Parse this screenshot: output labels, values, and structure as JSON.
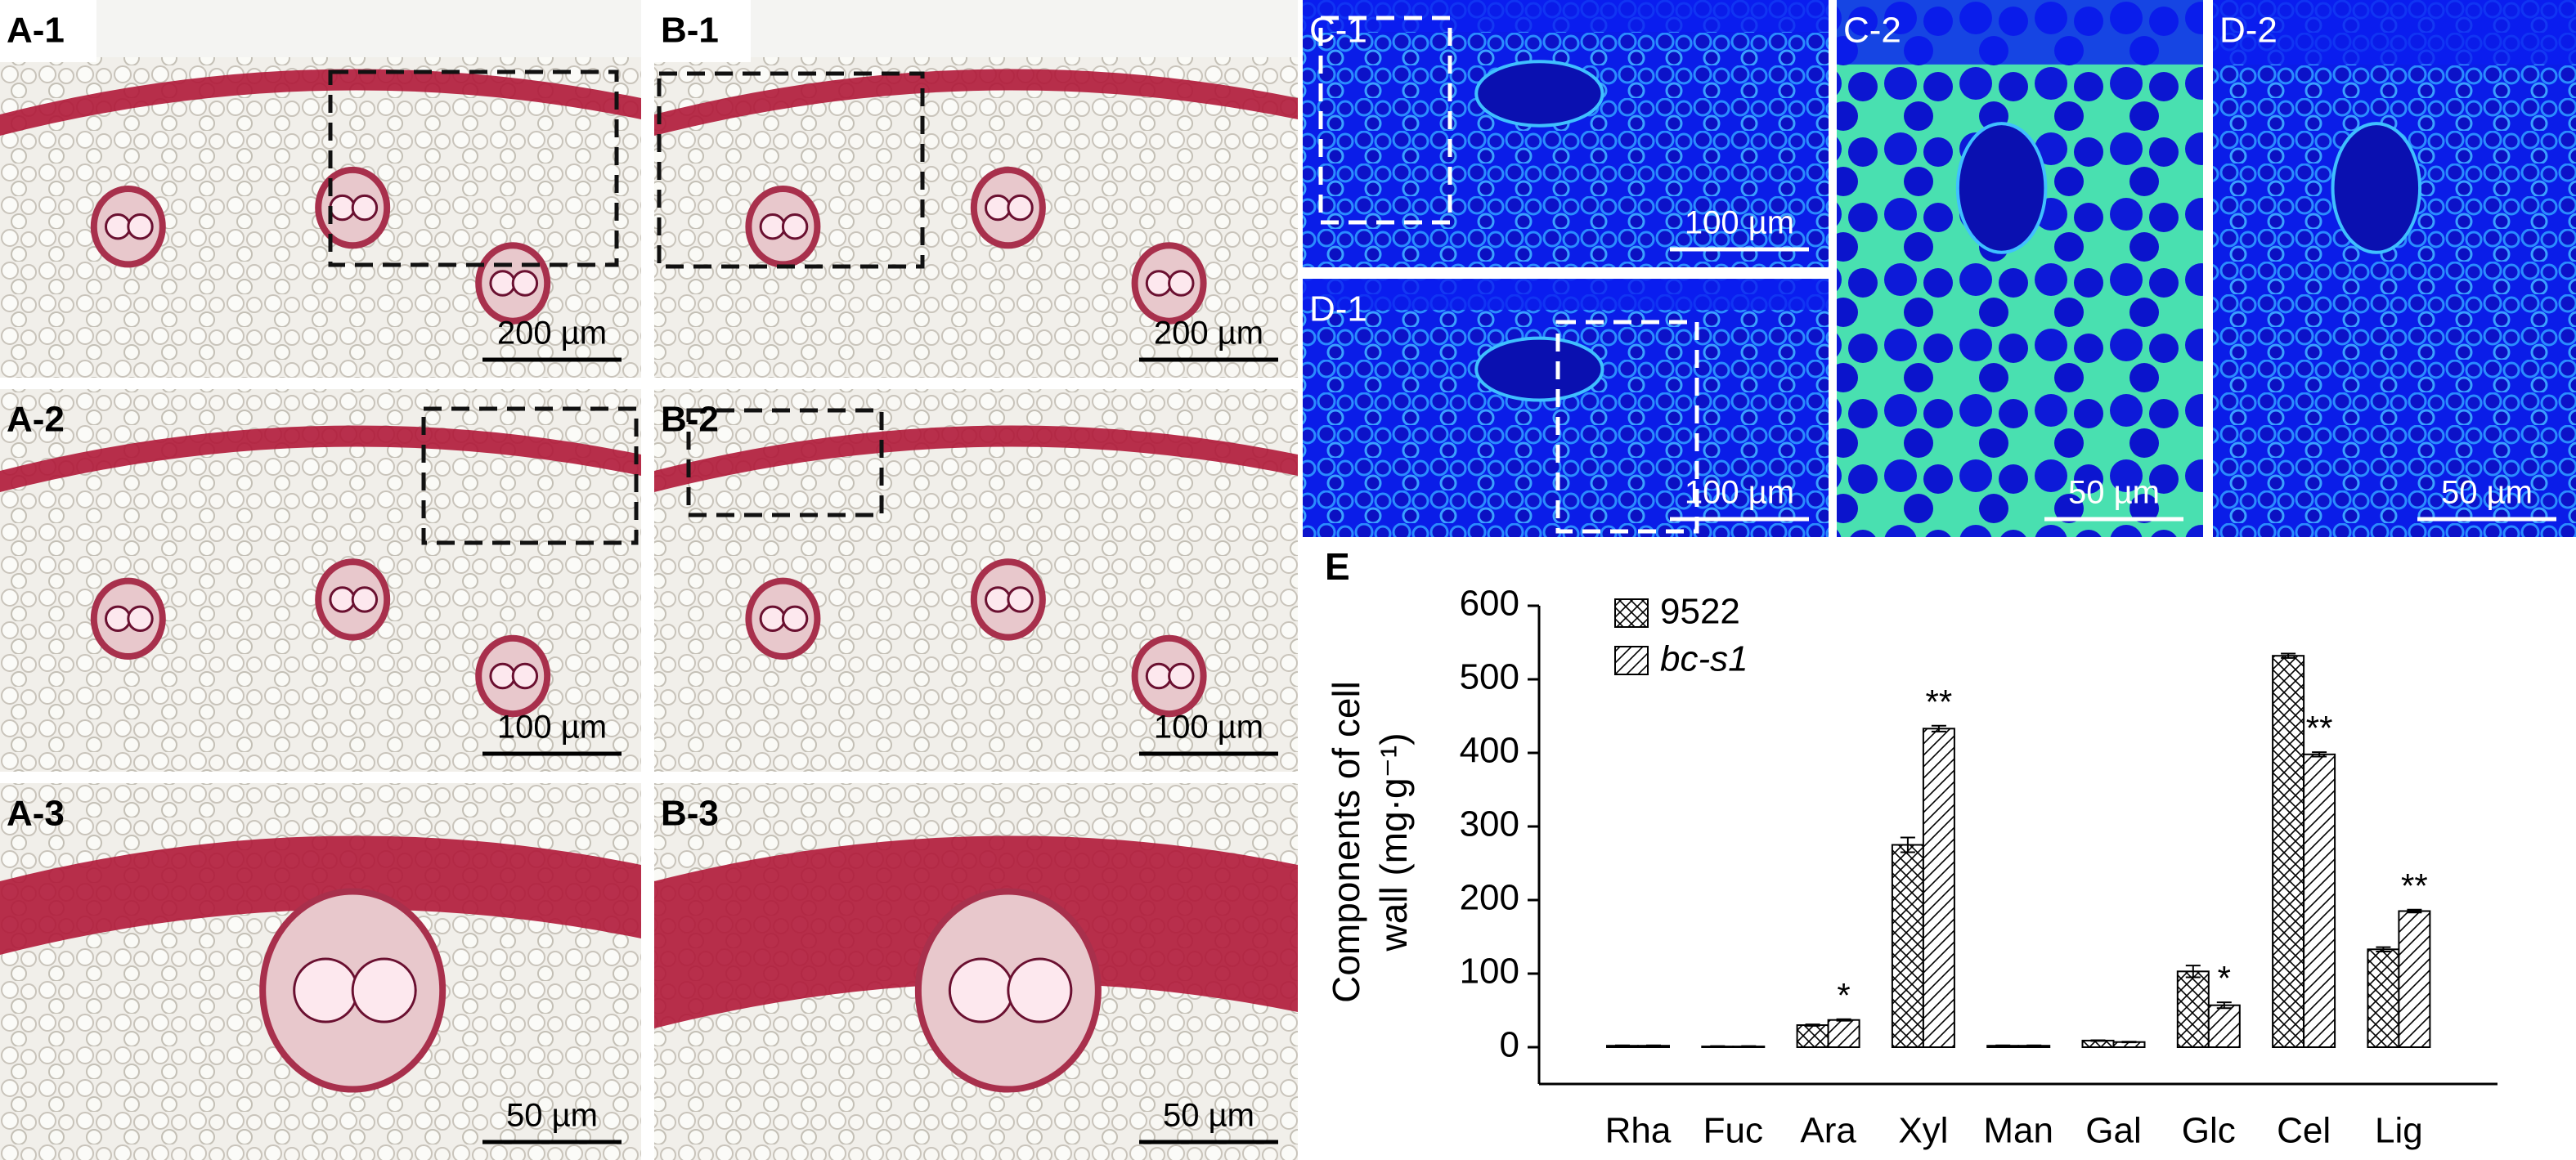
{
  "panels": [
    {
      "label": "A-1",
      "scale_bar": "200 µm"
    },
    {
      "label": "B-1",
      "scale_bar": "200 µm"
    },
    {
      "label": "A-2",
      "scale_bar": "100 µm"
    },
    {
      "label": "B-2",
      "scale_bar": "100 µm"
    },
    {
      "label": "A-3",
      "scale_bar": "50 µm"
    },
    {
      "label": "B-3",
      "scale_bar": "50 µm"
    },
    {
      "label": "C-1",
      "scale_bar": "100 µm"
    },
    {
      "label": "D-1",
      "scale_bar": "100 µm"
    },
    {
      "label": "C-2",
      "scale_bar": "50 µm"
    },
    {
      "label": "D-2",
      "scale_bar": "50 µm"
    }
  ],
  "chart_data": {
    "type": "bar",
    "panel_label": "E",
    "y_label_lines": [
      "Components of cell",
      "wall (mg·g⁻¹)"
    ],
    "categories": [
      "Rha",
      "Fuc",
      "Ara",
      "Xyl",
      "Man",
      "Gal",
      "Glc",
      "Cel",
      "Lig"
    ],
    "series": [
      {
        "name": "9522",
        "pattern": "crosshatch",
        "values": [
          2,
          1,
          30,
          275,
          2,
          9,
          103,
          532,
          133
        ],
        "errors": [
          0.5,
          0.5,
          1,
          10,
          0.5,
          0.5,
          8,
          3,
          3
        ]
      },
      {
        "name": "bc-s1",
        "pattern": "diagonal",
        "italic": true,
        "values": [
          2,
          1,
          37,
          433,
          2,
          7,
          57,
          398,
          185
        ],
        "errors": [
          0.5,
          0.5,
          1,
          4,
          0.5,
          0.5,
          4,
          3,
          2
        ]
      }
    ],
    "significance": [
      null,
      null,
      "*",
      "**",
      null,
      null,
      "*",
      "**",
      "**"
    ],
    "ylim": [
      -50,
      600
    ],
    "yticks": [
      0,
      100,
      200,
      300,
      400,
      500,
      600
    ]
  }
}
